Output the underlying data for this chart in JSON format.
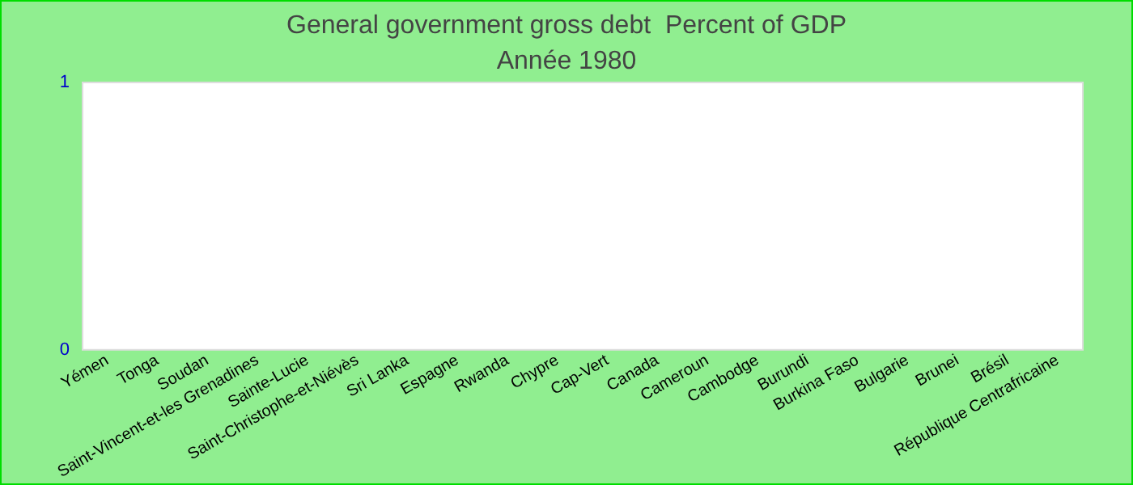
{
  "chart_data": {
    "type": "bar",
    "title": "General government gross debt  Percent of GDP",
    "subtitle": "Année 1980",
    "categories": [
      "Yémen",
      "Tonga",
      "Soudan",
      "Saint-Vincent-et-les Grenadines",
      "Sainte-Lucie",
      "Saint-Christophe-et-Niévès",
      "Sri Lanka",
      "Espagne",
      "Rwanda",
      "Chypre",
      "Cap-Vert",
      "Canada",
      "Cameroun",
      "Cambodge",
      "Burundi",
      "Burkina Faso",
      "Bulgarie",
      "Brunei",
      "Brésil",
      "République Centrafricaine"
    ],
    "values": [
      null,
      null,
      null,
      null,
      null,
      null,
      null,
      null,
      null,
      null,
      null,
      null,
      null,
      null,
      null,
      null,
      null,
      null,
      null,
      null
    ],
    "ylim": [
      0,
      1
    ],
    "yticks": [
      0,
      1
    ],
    "grid": false
  }
}
